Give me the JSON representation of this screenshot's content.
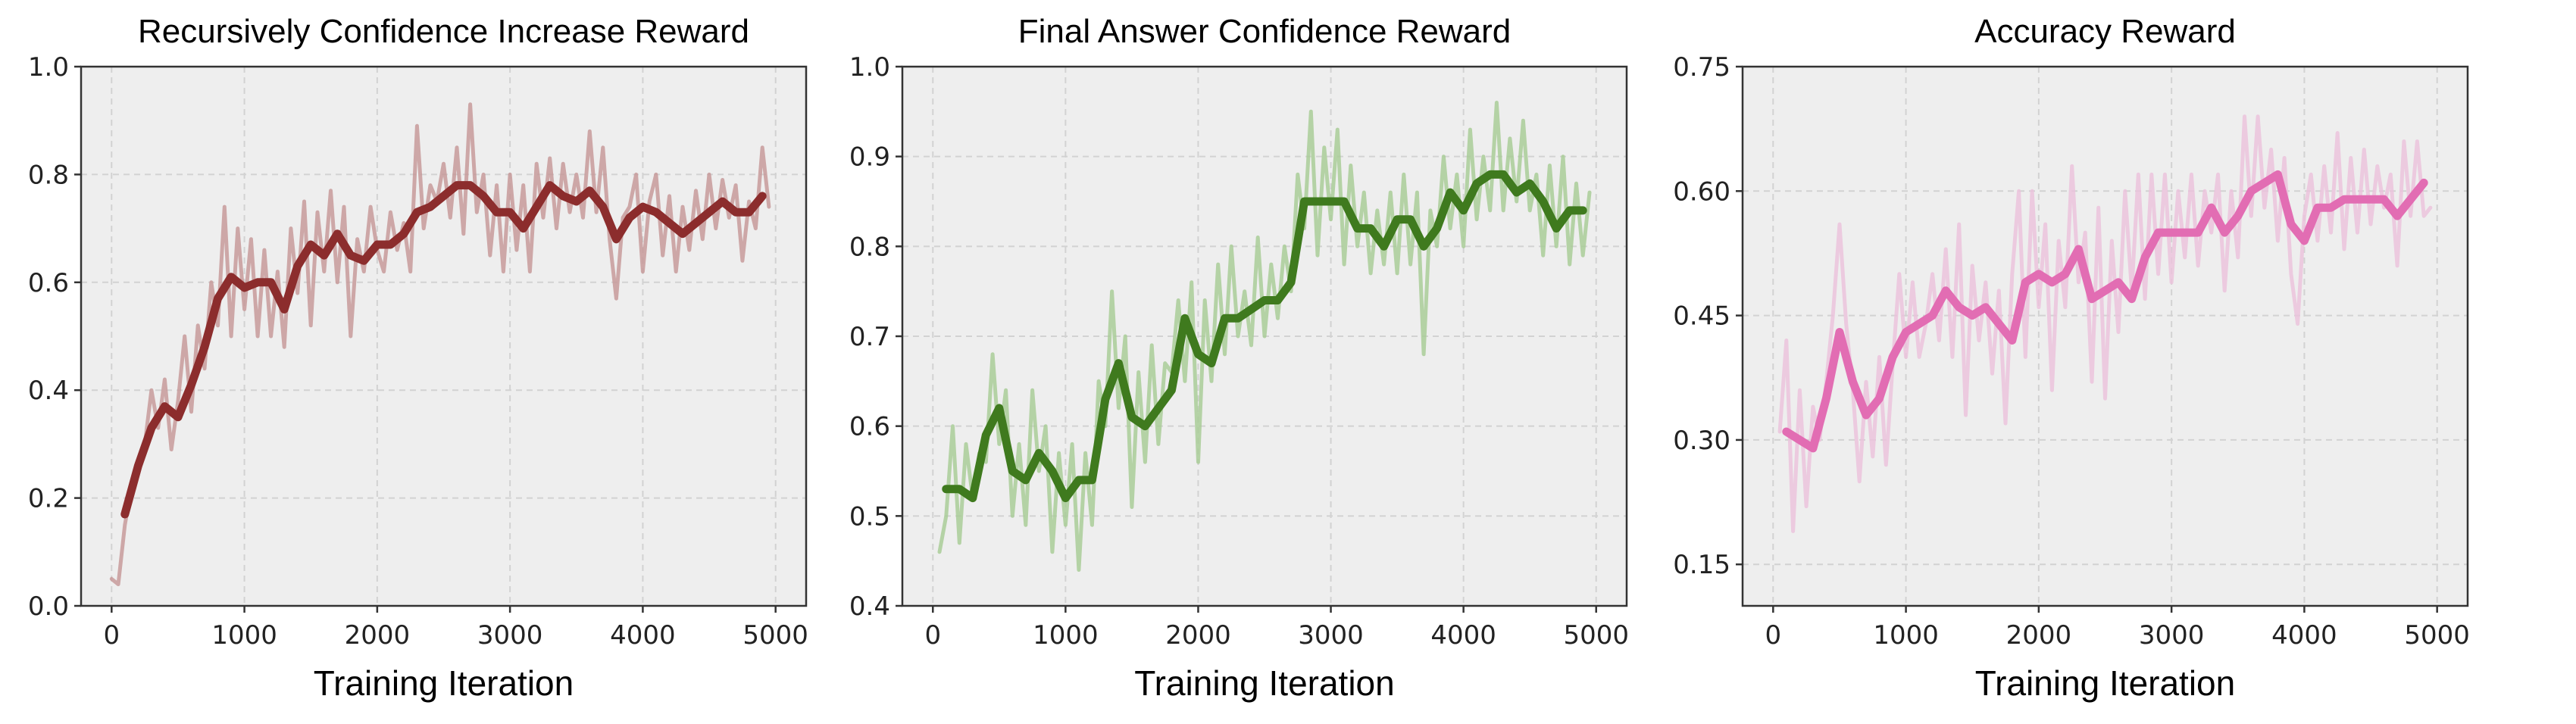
{
  "chart_data": [
    {
      "type": "line",
      "title": "Recursively Confidence Increase Reward",
      "xlabel": "Training Iteration",
      "ylabel": "",
      "xlim": [
        -230,
        5230
      ],
      "ylim": [
        0.0,
        1.0
      ],
      "xticks": [
        0,
        1000,
        2000,
        3000,
        4000,
        5000
      ],
      "xtick_labels": [
        "0",
        "1000",
        "2000",
        "3000",
        "4000",
        "5000"
      ],
      "yticks": [
        0.0,
        0.2,
        0.4,
        0.6,
        0.8,
        1.0
      ],
      "ytick_labels": [
        "0.0",
        "0.2",
        "0.4",
        "0.6",
        "0.8",
        "1.0"
      ],
      "grid": true,
      "colors": {
        "smoothed": "#8c2d2d",
        "raw": "#c79a9a",
        "background": "#eeeeee"
      },
      "series": [
        {
          "name": "raw",
          "x_start": 0,
          "x_step": 50,
          "values": [
            0.05,
            0.04,
            0.15,
            0.22,
            0.27,
            0.3,
            0.4,
            0.33,
            0.42,
            0.29,
            0.38,
            0.5,
            0.36,
            0.52,
            0.44,
            0.6,
            0.52,
            0.74,
            0.5,
            0.7,
            0.55,
            0.68,
            0.5,
            0.66,
            0.5,
            0.62,
            0.48,
            0.7,
            0.58,
            0.75,
            0.52,
            0.73,
            0.62,
            0.77,
            0.6,
            0.74,
            0.5,
            0.68,
            0.62,
            0.74,
            0.66,
            0.62,
            0.73,
            0.66,
            0.71,
            0.62,
            0.89,
            0.7,
            0.78,
            0.75,
            0.82,
            0.72,
            0.85,
            0.69,
            0.93,
            0.73,
            0.8,
            0.65,
            0.78,
            0.62,
            0.8,
            0.66,
            0.78,
            0.62,
            0.82,
            0.72,
            0.83,
            0.7,
            0.82,
            0.73,
            0.8,
            0.72,
            0.88,
            0.73,
            0.85,
            0.68,
            0.57,
            0.72,
            0.74,
            0.8,
            0.62,
            0.75,
            0.8,
            0.65,
            0.76,
            0.62,
            0.74,
            0.66,
            0.77,
            0.68,
            0.8,
            0.7,
            0.79,
            0.72,
            0.78,
            0.64,
            0.75,
            0.7,
            0.85,
            0.74
          ]
        },
        {
          "name": "smoothed",
          "x_start": 100,
          "x_step": 100,
          "values": [
            0.17,
            0.26,
            0.33,
            0.37,
            0.35,
            0.41,
            0.48,
            0.57,
            0.61,
            0.59,
            0.6,
            0.6,
            0.55,
            0.63,
            0.67,
            0.65,
            0.69,
            0.65,
            0.64,
            0.67,
            0.67,
            0.69,
            0.73,
            0.74,
            0.76,
            0.78,
            0.78,
            0.76,
            0.73,
            0.73,
            0.7,
            0.74,
            0.78,
            0.76,
            0.75,
            0.77,
            0.74,
            0.68,
            0.72,
            0.74,
            0.73,
            0.71,
            0.69,
            0.71,
            0.73,
            0.75,
            0.73,
            0.73,
            0.76
          ]
        }
      ]
    },
    {
      "type": "line",
      "title": "Final Answer Confidence Reward",
      "xlabel": "Training Iteration",
      "ylabel": "",
      "xlim": [
        -230,
        5230
      ],
      "ylim": [
        0.4,
        1.0
      ],
      "xticks": [
        0,
        1000,
        2000,
        3000,
        4000,
        5000
      ],
      "xtick_labels": [
        "0",
        "1000",
        "2000",
        "3000",
        "4000",
        "5000"
      ],
      "yticks": [
        0.4,
        0.5,
        0.6,
        0.7,
        0.8,
        0.9,
        1.0
      ],
      "ytick_labels": [
        "0.4",
        "0.5",
        "0.6",
        "0.7",
        "0.8",
        "0.9",
        "1.0"
      ],
      "grid": true,
      "colors": {
        "smoothed": "#3f7a1e",
        "raw": "#a9cc98",
        "background": "#eeeeee"
      },
      "series": [
        {
          "name": "raw",
          "x_start": 50,
          "x_step": 50,
          "values": [
            0.46,
            0.5,
            0.6,
            0.47,
            0.58,
            0.52,
            0.57,
            0.56,
            0.68,
            0.58,
            0.64,
            0.5,
            0.58,
            0.49,
            0.64,
            0.55,
            0.6,
            0.46,
            0.57,
            0.49,
            0.58,
            0.44,
            0.57,
            0.49,
            0.65,
            0.6,
            0.75,
            0.62,
            0.7,
            0.51,
            0.66,
            0.56,
            0.69,
            0.58,
            0.67,
            0.66,
            0.74,
            0.65,
            0.76,
            0.56,
            0.74,
            0.65,
            0.78,
            0.68,
            0.8,
            0.7,
            0.75,
            0.69,
            0.81,
            0.7,
            0.78,
            0.72,
            0.8,
            0.75,
            0.88,
            0.82,
            0.95,
            0.79,
            0.91,
            0.83,
            0.93,
            0.78,
            0.89,
            0.8,
            0.86,
            0.77,
            0.84,
            0.78,
            0.86,
            0.77,
            0.88,
            0.78,
            0.86,
            0.68,
            0.84,
            0.8,
            0.9,
            0.82,
            0.88,
            0.8,
            0.93,
            0.83,
            0.9,
            0.84,
            0.96,
            0.84,
            0.92,
            0.85,
            0.94,
            0.84,
            0.88,
            0.79,
            0.89,
            0.8,
            0.9,
            0.78,
            0.87,
            0.79,
            0.86
          ]
        },
        {
          "name": "smoothed",
          "x_start": 100,
          "x_step": 100,
          "values": [
            0.53,
            0.53,
            0.52,
            0.59,
            0.62,
            0.55,
            0.54,
            0.57,
            0.55,
            0.52,
            0.54,
            0.54,
            0.63,
            0.67,
            0.61,
            0.6,
            0.62,
            0.64,
            0.72,
            0.68,
            0.67,
            0.72,
            0.72,
            0.73,
            0.74,
            0.74,
            0.76,
            0.85,
            0.85,
            0.85,
            0.85,
            0.82,
            0.82,
            0.8,
            0.83,
            0.83,
            0.8,
            0.82,
            0.86,
            0.84,
            0.87,
            0.88,
            0.88,
            0.86,
            0.87,
            0.85,
            0.82,
            0.84,
            0.84
          ]
        }
      ]
    },
    {
      "type": "line",
      "title": "Accuracy Reward",
      "xlabel": "Training Iteration",
      "ylabel": "",
      "xlim": [
        -230,
        5230
      ],
      "ylim": [
        0.1,
        0.75
      ],
      "xticks": [
        0,
        1000,
        2000,
        3000,
        4000,
        5000
      ],
      "xtick_labels": [
        "0",
        "1000",
        "2000",
        "3000",
        "4000",
        "5000"
      ],
      "yticks": [
        0.15,
        0.3,
        0.45,
        0.6,
        0.75
      ],
      "ytick_labels": [
        "0.15",
        "0.30",
        "0.45",
        "0.60",
        "0.75"
      ],
      "grid": true,
      "colors": {
        "smoothed": "#e26db3",
        "raw": "#ebc3dc",
        "background": "#eeeeee"
      },
      "series": [
        {
          "name": "raw",
          "x_start": 50,
          "x_step": 50,
          "values": [
            0.31,
            0.42,
            0.19,
            0.36,
            0.22,
            0.34,
            0.3,
            0.37,
            0.45,
            0.56,
            0.44,
            0.36,
            0.25,
            0.37,
            0.28,
            0.4,
            0.27,
            0.39,
            0.5,
            0.4,
            0.49,
            0.4,
            0.44,
            0.5,
            0.42,
            0.53,
            0.4,
            0.56,
            0.33,
            0.51,
            0.42,
            0.49,
            0.38,
            0.48,
            0.32,
            0.5,
            0.6,
            0.4,
            0.6,
            0.46,
            0.56,
            0.36,
            0.54,
            0.46,
            0.63,
            0.49,
            0.55,
            0.37,
            0.58,
            0.35,
            0.54,
            0.43,
            0.6,
            0.48,
            0.62,
            0.47,
            0.62,
            0.5,
            0.62,
            0.49,
            0.6,
            0.52,
            0.62,
            0.51,
            0.6,
            0.55,
            0.62,
            0.48,
            0.6,
            0.52,
            0.69,
            0.57,
            0.69,
            0.58,
            0.65,
            0.54,
            0.64,
            0.5,
            0.44,
            0.57,
            0.62,
            0.54,
            0.63,
            0.55,
            0.67,
            0.53,
            0.64,
            0.55,
            0.65,
            0.56,
            0.63,
            0.58,
            0.62,
            0.51,
            0.66,
            0.57,
            0.66,
            0.57,
            0.58
          ]
        },
        {
          "name": "smoothed",
          "x_start": 100,
          "x_step": 100,
          "values": [
            0.31,
            0.3,
            0.29,
            0.35,
            0.43,
            0.37,
            0.33,
            0.35,
            0.4,
            0.43,
            0.44,
            0.45,
            0.48,
            0.46,
            0.45,
            0.46,
            0.44,
            0.42,
            0.49,
            0.5,
            0.49,
            0.5,
            0.53,
            0.47,
            0.48,
            0.49,
            0.47,
            0.52,
            0.55,
            0.55,
            0.55,
            0.55,
            0.58,
            0.55,
            0.57,
            0.6,
            0.61,
            0.62,
            0.56,
            0.54,
            0.58,
            0.58,
            0.59,
            0.59,
            0.59,
            0.59,
            0.57,
            0.59,
            0.61
          ]
        }
      ]
    }
  ]
}
